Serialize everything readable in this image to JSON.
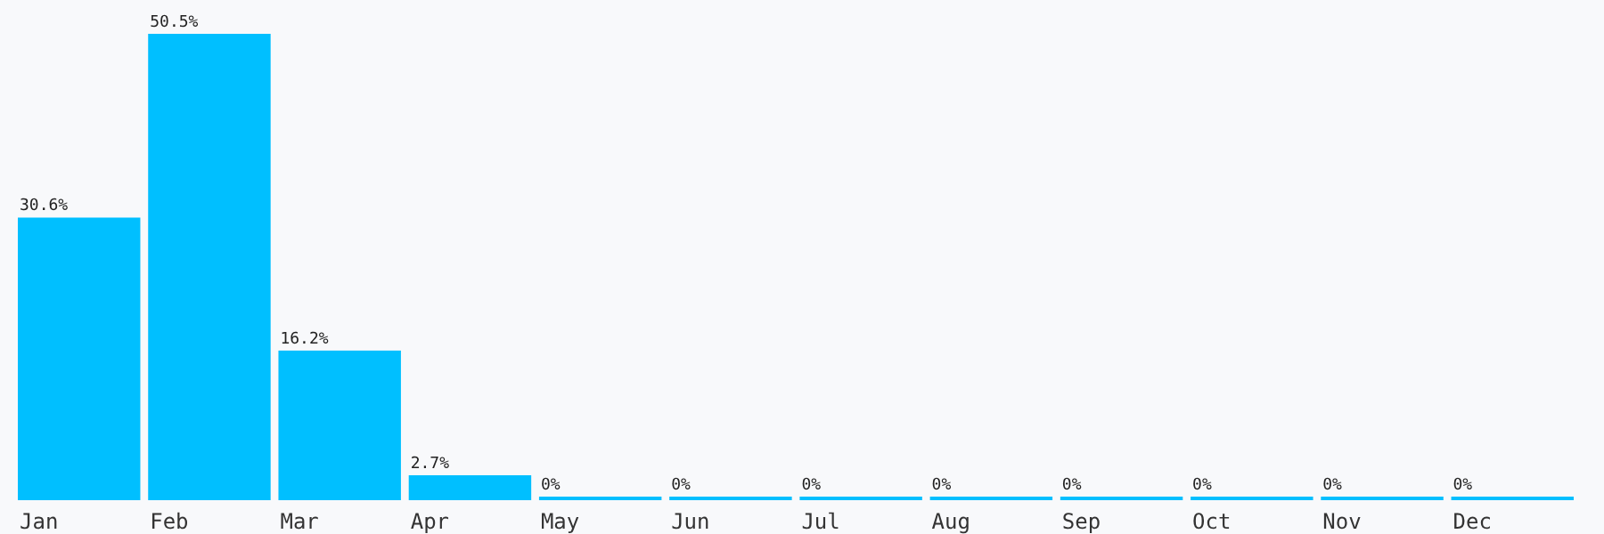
{
  "chart_data": {
    "type": "bar",
    "categories": [
      "Jan",
      "Feb",
      "Mar",
      "Apr",
      "May",
      "Jun",
      "Jul",
      "Aug",
      "Sep",
      "Oct",
      "Nov",
      "Dec"
    ],
    "values": [
      30.6,
      50.5,
      16.2,
      2.7,
      0,
      0,
      0,
      0,
      0,
      0,
      0,
      0
    ],
    "value_labels": [
      "30.6%",
      "50.5%",
      "16.2%",
      "2.7%",
      "0%",
      "0%",
      "0%",
      "0%",
      "0%",
      "0%",
      "0%",
      "0%"
    ],
    "color": "#00bfff"
  }
}
